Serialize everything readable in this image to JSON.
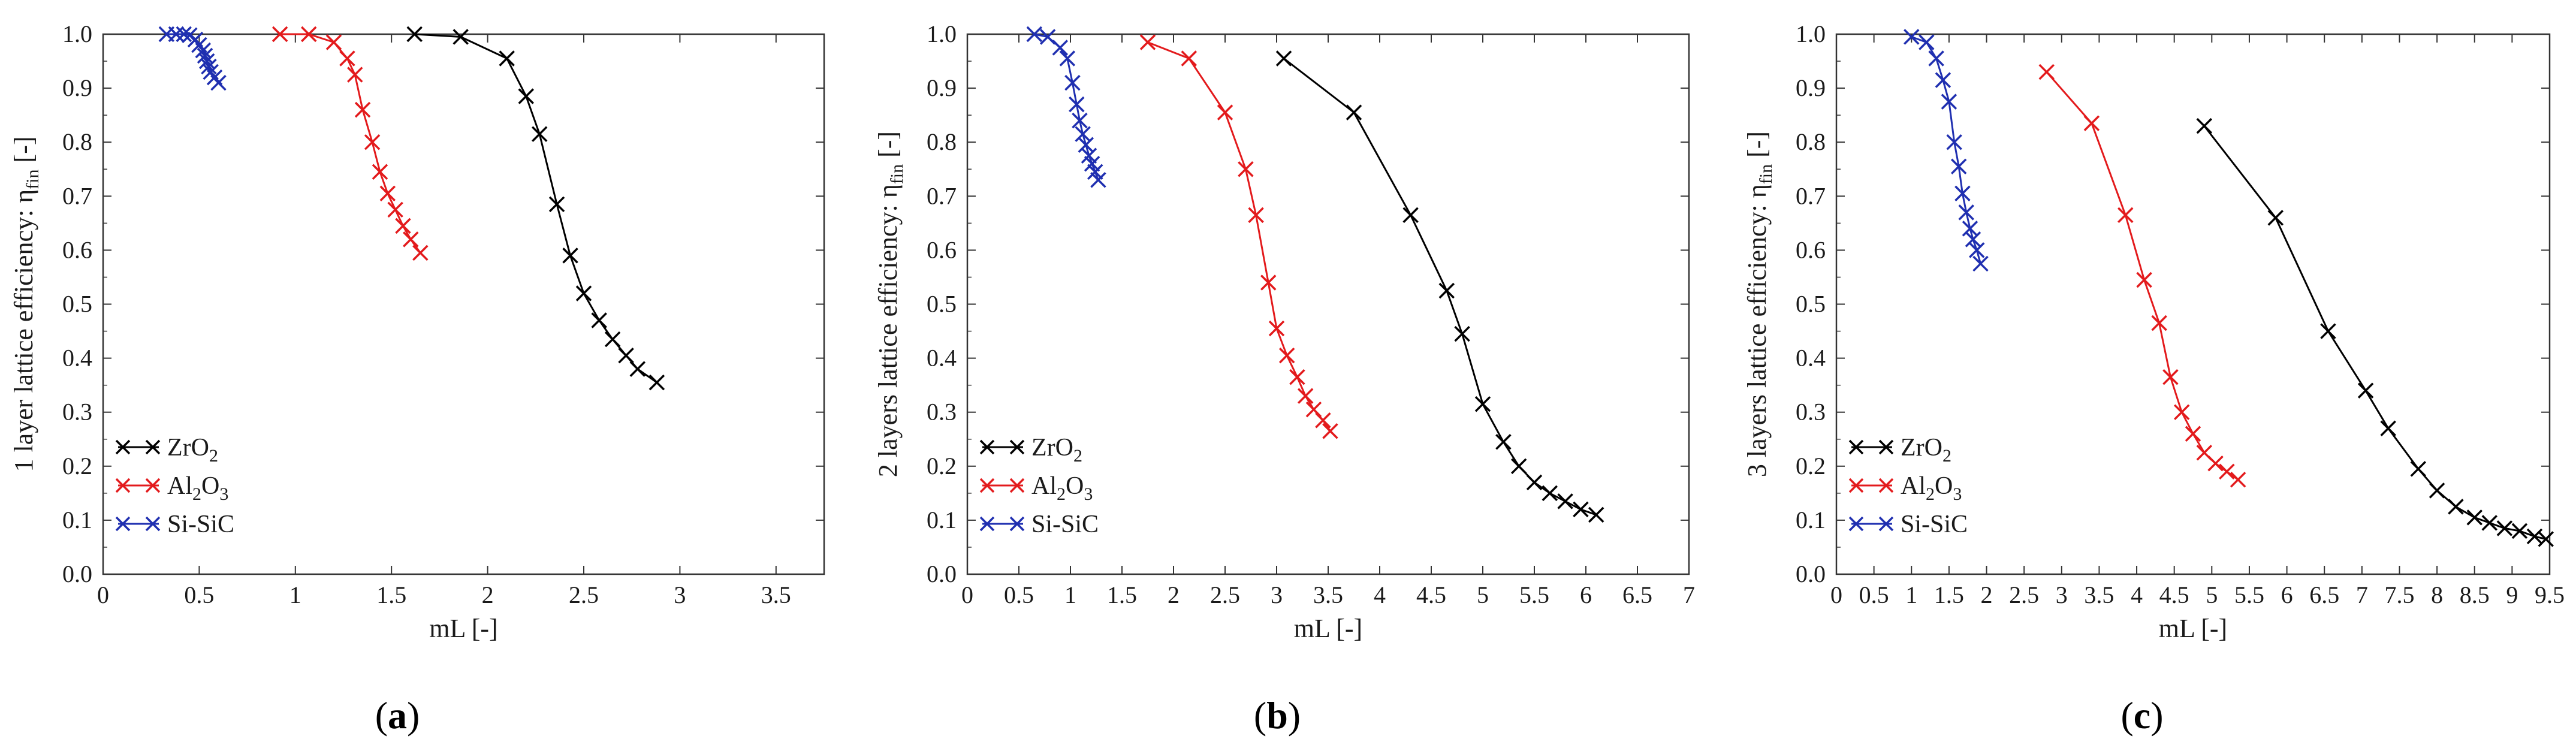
{
  "chart_data": [
    {
      "type": "line",
      "panel": "a",
      "panel_label": "a",
      "xlabel": "mL [-]",
      "ylabel_main": "1 layer lattice efficiency: η",
      "ylabel_sub": "fin",
      "ylabel_tail": " [-]",
      "xlim": [
        0,
        3.75
      ],
      "ylim": [
        0,
        1.0
      ],
      "xticks": [
        0,
        0.5,
        1,
        1.5,
        2,
        2.5,
        3,
        3.5
      ],
      "xtick_labels": [
        "0",
        "0.5",
        "1",
        "1.5",
        "2",
        "2.5",
        "3",
        "3.5"
      ],
      "yticks": [
        0,
        0.1,
        0.2,
        0.3,
        0.4,
        0.5,
        0.6,
        0.7,
        0.8,
        0.9,
        1.0
      ],
      "ytick_labels": [
        "0.0",
        "0.1",
        "0.2",
        "0.3",
        "0.4",
        "0.5",
        "0.6",
        "0.7",
        "0.8",
        "0.9",
        "1.0"
      ],
      "legend": [
        {
          "base": "ZrO",
          "sub1": "2",
          "mid": "",
          "sub2": "",
          "color": "#000000"
        },
        {
          "base": "Al",
          "sub1": "2",
          "mid": "O",
          "sub2": "3",
          "color": "#e31a1c"
        },
        {
          "base": "Si-SiC",
          "sub1": "",
          "mid": "",
          "sub2": "",
          "color": "#1f2fb0"
        }
      ],
      "series": [
        {
          "name": "ZrO2",
          "color": "#000000",
          "x": [
            1.62,
            1.86,
            2.1,
            2.2,
            2.27,
            2.36,
            2.43,
            2.5,
            2.58,
            2.65,
            2.72,
            2.78,
            2.88
          ],
          "y": [
            1.0,
            0.995,
            0.955,
            0.885,
            0.815,
            0.685,
            0.59,
            0.52,
            0.47,
            0.435,
            0.405,
            0.38,
            0.355
          ]
        },
        {
          "name": "Al2O3",
          "color": "#e31a1c",
          "x": [
            0.92,
            1.07,
            1.2,
            1.27,
            1.31,
            1.35,
            1.4,
            1.44,
            1.48,
            1.52,
            1.56,
            1.6,
            1.65
          ],
          "y": [
            1.0,
            1.0,
            0.985,
            0.955,
            0.925,
            0.86,
            0.8,
            0.745,
            0.705,
            0.675,
            0.645,
            0.62,
            0.595
          ]
        },
        {
          "name": "Si-SiC",
          "color": "#1f2fb0",
          "x": [
            0.33,
            0.38,
            0.42,
            0.45,
            0.48,
            0.5,
            0.52,
            0.53,
            0.54,
            0.55,
            0.56,
            0.58,
            0.6
          ],
          "y": [
            1.0,
            1.0,
            1.0,
            0.998,
            0.99,
            0.98,
            0.97,
            0.96,
            0.95,
            0.94,
            0.93,
            0.92,
            0.91
          ]
        }
      ]
    },
    {
      "type": "line",
      "panel": "b",
      "panel_label": "b",
      "xlabel": "mL [-]",
      "ylabel_main": "2 layers lattice efficiency: η",
      "ylabel_sub": "fin",
      "ylabel_tail": " [-]",
      "xlim": [
        0,
        7
      ],
      "ylim": [
        0,
        1.0
      ],
      "xticks": [
        0,
        0.5,
        1,
        1.5,
        2,
        2.5,
        3,
        3.5,
        4,
        4.5,
        5,
        5.5,
        6,
        6.5,
        7
      ],
      "xtick_labels": [
        "0",
        "0.5",
        "1",
        "1.5",
        "2",
        "2.5",
        "3",
        "3.5",
        "4",
        "4.5",
        "5",
        "5.5",
        "6",
        "6.5",
        "7"
      ],
      "yticks": [
        0,
        0.1,
        0.2,
        0.3,
        0.4,
        0.5,
        0.6,
        0.7,
        0.8,
        0.9,
        1.0
      ],
      "ytick_labels": [
        "0.0",
        "0.1",
        "0.2",
        "0.3",
        "0.4",
        "0.5",
        "0.6",
        "0.7",
        "0.8",
        "0.9",
        "1.0"
      ],
      "legend": [
        {
          "base": "ZrO",
          "sub1": "2",
          "mid": "",
          "sub2": "",
          "color": "#000000"
        },
        {
          "base": "Al",
          "sub1": "2",
          "mid": "O",
          "sub2": "3",
          "color": "#e31a1c"
        },
        {
          "base": "Si-SiC",
          "sub1": "",
          "mid": "",
          "sub2": "",
          "color": "#1f2fb0"
        }
      ],
      "series": [
        {
          "name": "ZrO2",
          "color": "#000000",
          "x": [
            3.07,
            3.75,
            4.3,
            4.65,
            4.8,
            5.0,
            5.2,
            5.35,
            5.5,
            5.65,
            5.8,
            5.95,
            6.1
          ],
          "y": [
            0.955,
            0.855,
            0.665,
            0.525,
            0.445,
            0.315,
            0.245,
            0.2,
            0.17,
            0.15,
            0.135,
            0.12,
            0.11
          ]
        },
        {
          "name": "Al2O3",
          "color": "#e31a1c",
          "x": [
            1.75,
            2.15,
            2.5,
            2.7,
            2.8,
            2.92,
            3.0,
            3.1,
            3.2,
            3.28,
            3.36,
            3.45,
            3.52
          ],
          "y": [
            0.985,
            0.955,
            0.855,
            0.75,
            0.665,
            0.54,
            0.455,
            0.405,
            0.365,
            0.33,
            0.305,
            0.285,
            0.265
          ]
        },
        {
          "name": "Si-SiC",
          "color": "#1f2fb0",
          "x": [
            0.65,
            0.78,
            0.9,
            0.97,
            1.02,
            1.06,
            1.09,
            1.12,
            1.15,
            1.18,
            1.21,
            1.24,
            1.27
          ],
          "y": [
            1.0,
            0.995,
            0.975,
            0.955,
            0.91,
            0.87,
            0.84,
            0.815,
            0.795,
            0.775,
            0.76,
            0.745,
            0.73
          ]
        }
      ]
    },
    {
      "type": "line",
      "panel": "c",
      "panel_label": "c",
      "xlabel": "mL [-]",
      "ylabel_main": "3 layers lattice efficiency: η",
      "ylabel_sub": "fin",
      "ylabel_tail": " [-]",
      "xlim": [
        0,
        9.5
      ],
      "ylim": [
        0,
        1.0
      ],
      "xticks": [
        0,
        0.5,
        1,
        1.5,
        2,
        2.5,
        3,
        3.5,
        4,
        4.5,
        5,
        5.5,
        6,
        6.5,
        7,
        7.5,
        8,
        8.5,
        9,
        9.5
      ],
      "xtick_labels": [
        "0",
        "0.5",
        "1",
        "1.5",
        "2",
        "2.5",
        "3",
        "3.5",
        "4",
        "4.5",
        "5",
        "5.5",
        "6",
        "6.5",
        "7",
        "7.5",
        "8",
        "8.5",
        "9",
        "9.5"
      ],
      "yticks": [
        0,
        0.1,
        0.2,
        0.3,
        0.4,
        0.5,
        0.6,
        0.7,
        0.8,
        0.9,
        1.0
      ],
      "ytick_labels": [
        "0.0",
        "0.1",
        "0.2",
        "0.3",
        "0.4",
        "0.5",
        "0.6",
        "0.7",
        "0.8",
        "0.9",
        "1.0"
      ],
      "legend": [
        {
          "base": "ZrO",
          "sub1": "2",
          "mid": "",
          "sub2": "",
          "color": "#000000"
        },
        {
          "base": "Al",
          "sub1": "2",
          "mid": "O",
          "sub2": "3",
          "color": "#e31a1c"
        },
        {
          "base": "Si-SiC",
          "sub1": "",
          "mid": "",
          "sub2": "",
          "color": "#1f2fb0"
        }
      ],
      "series": [
        {
          "name": "ZrO2",
          "color": "#000000",
          "x": [
            4.9,
            5.85,
            6.55,
            7.05,
            7.35,
            7.75,
            8.0,
            8.25,
            8.5,
            8.7,
            8.9,
            9.1,
            9.3,
            9.45
          ],
          "y": [
            0.83,
            0.66,
            0.45,
            0.34,
            0.27,
            0.195,
            0.155,
            0.125,
            0.105,
            0.095,
            0.085,
            0.08,
            0.07,
            0.065
          ]
        },
        {
          "name": "Al2O3",
          "color": "#e31a1c",
          "x": [
            2.8,
            3.4,
            3.85,
            4.1,
            4.3,
            4.45,
            4.6,
            4.75,
            4.9,
            5.05,
            5.2,
            5.35
          ],
          "y": [
            0.93,
            0.835,
            0.665,
            0.545,
            0.465,
            0.365,
            0.3,
            0.26,
            0.225,
            0.205,
            0.19,
            0.175
          ]
        },
        {
          "name": "Si-SiC",
          "color": "#1f2fb0",
          "x": [
            1.0,
            1.2,
            1.33,
            1.42,
            1.5,
            1.57,
            1.63,
            1.68,
            1.73,
            1.78,
            1.82,
            1.87,
            1.92
          ],
          "y": [
            0.995,
            0.985,
            0.955,
            0.915,
            0.875,
            0.8,
            0.755,
            0.705,
            0.67,
            0.64,
            0.62,
            0.6,
            0.575
          ]
        }
      ]
    }
  ]
}
